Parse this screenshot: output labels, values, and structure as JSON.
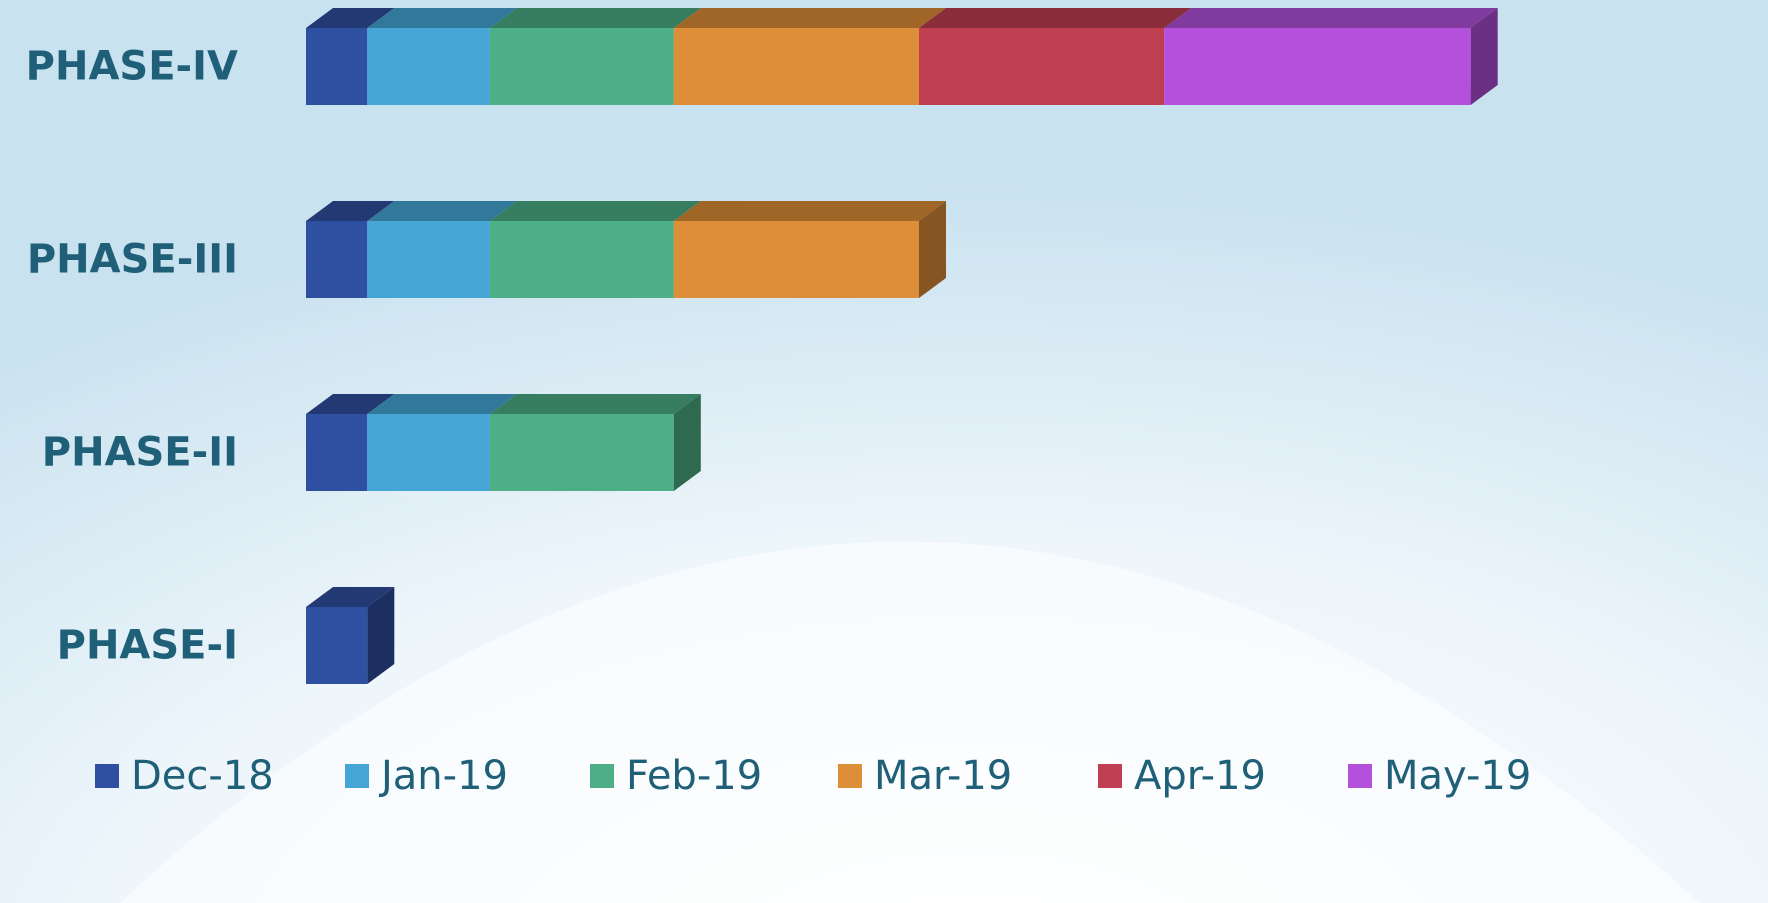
{
  "chart_data": {
    "type": "bar3d_stacked_horizontal",
    "categories": [
      "PHASE-I",
      "PHASE-II",
      "PHASE-III",
      "PHASE-IV"
    ],
    "series": [
      {
        "name": "Dec-18",
        "color": "#2f4fa0",
        "values": [
          1,
          1,
          1,
          1
        ]
      },
      {
        "name": "Jan-19",
        "color": "#45a6d6",
        "values": [
          null,
          2,
          2,
          2
        ]
      },
      {
        "name": "Feb-19",
        "color": "#4caf85",
        "values": [
          null,
          3,
          3,
          3
        ]
      },
      {
        "name": "Mar-19",
        "color": "#de8e38",
        "values": [
          null,
          null,
          4,
          4
        ]
      },
      {
        "name": "Apr-19",
        "color": "#bf3f50",
        "values": [
          null,
          null,
          null,
          4
        ]
      },
      {
        "name": "May-19",
        "color": "#b350dc",
        "values": [
          null,
          null,
          null,
          5
        ]
      }
    ],
    "xlim": [
      0,
      20
    ]
  }
}
